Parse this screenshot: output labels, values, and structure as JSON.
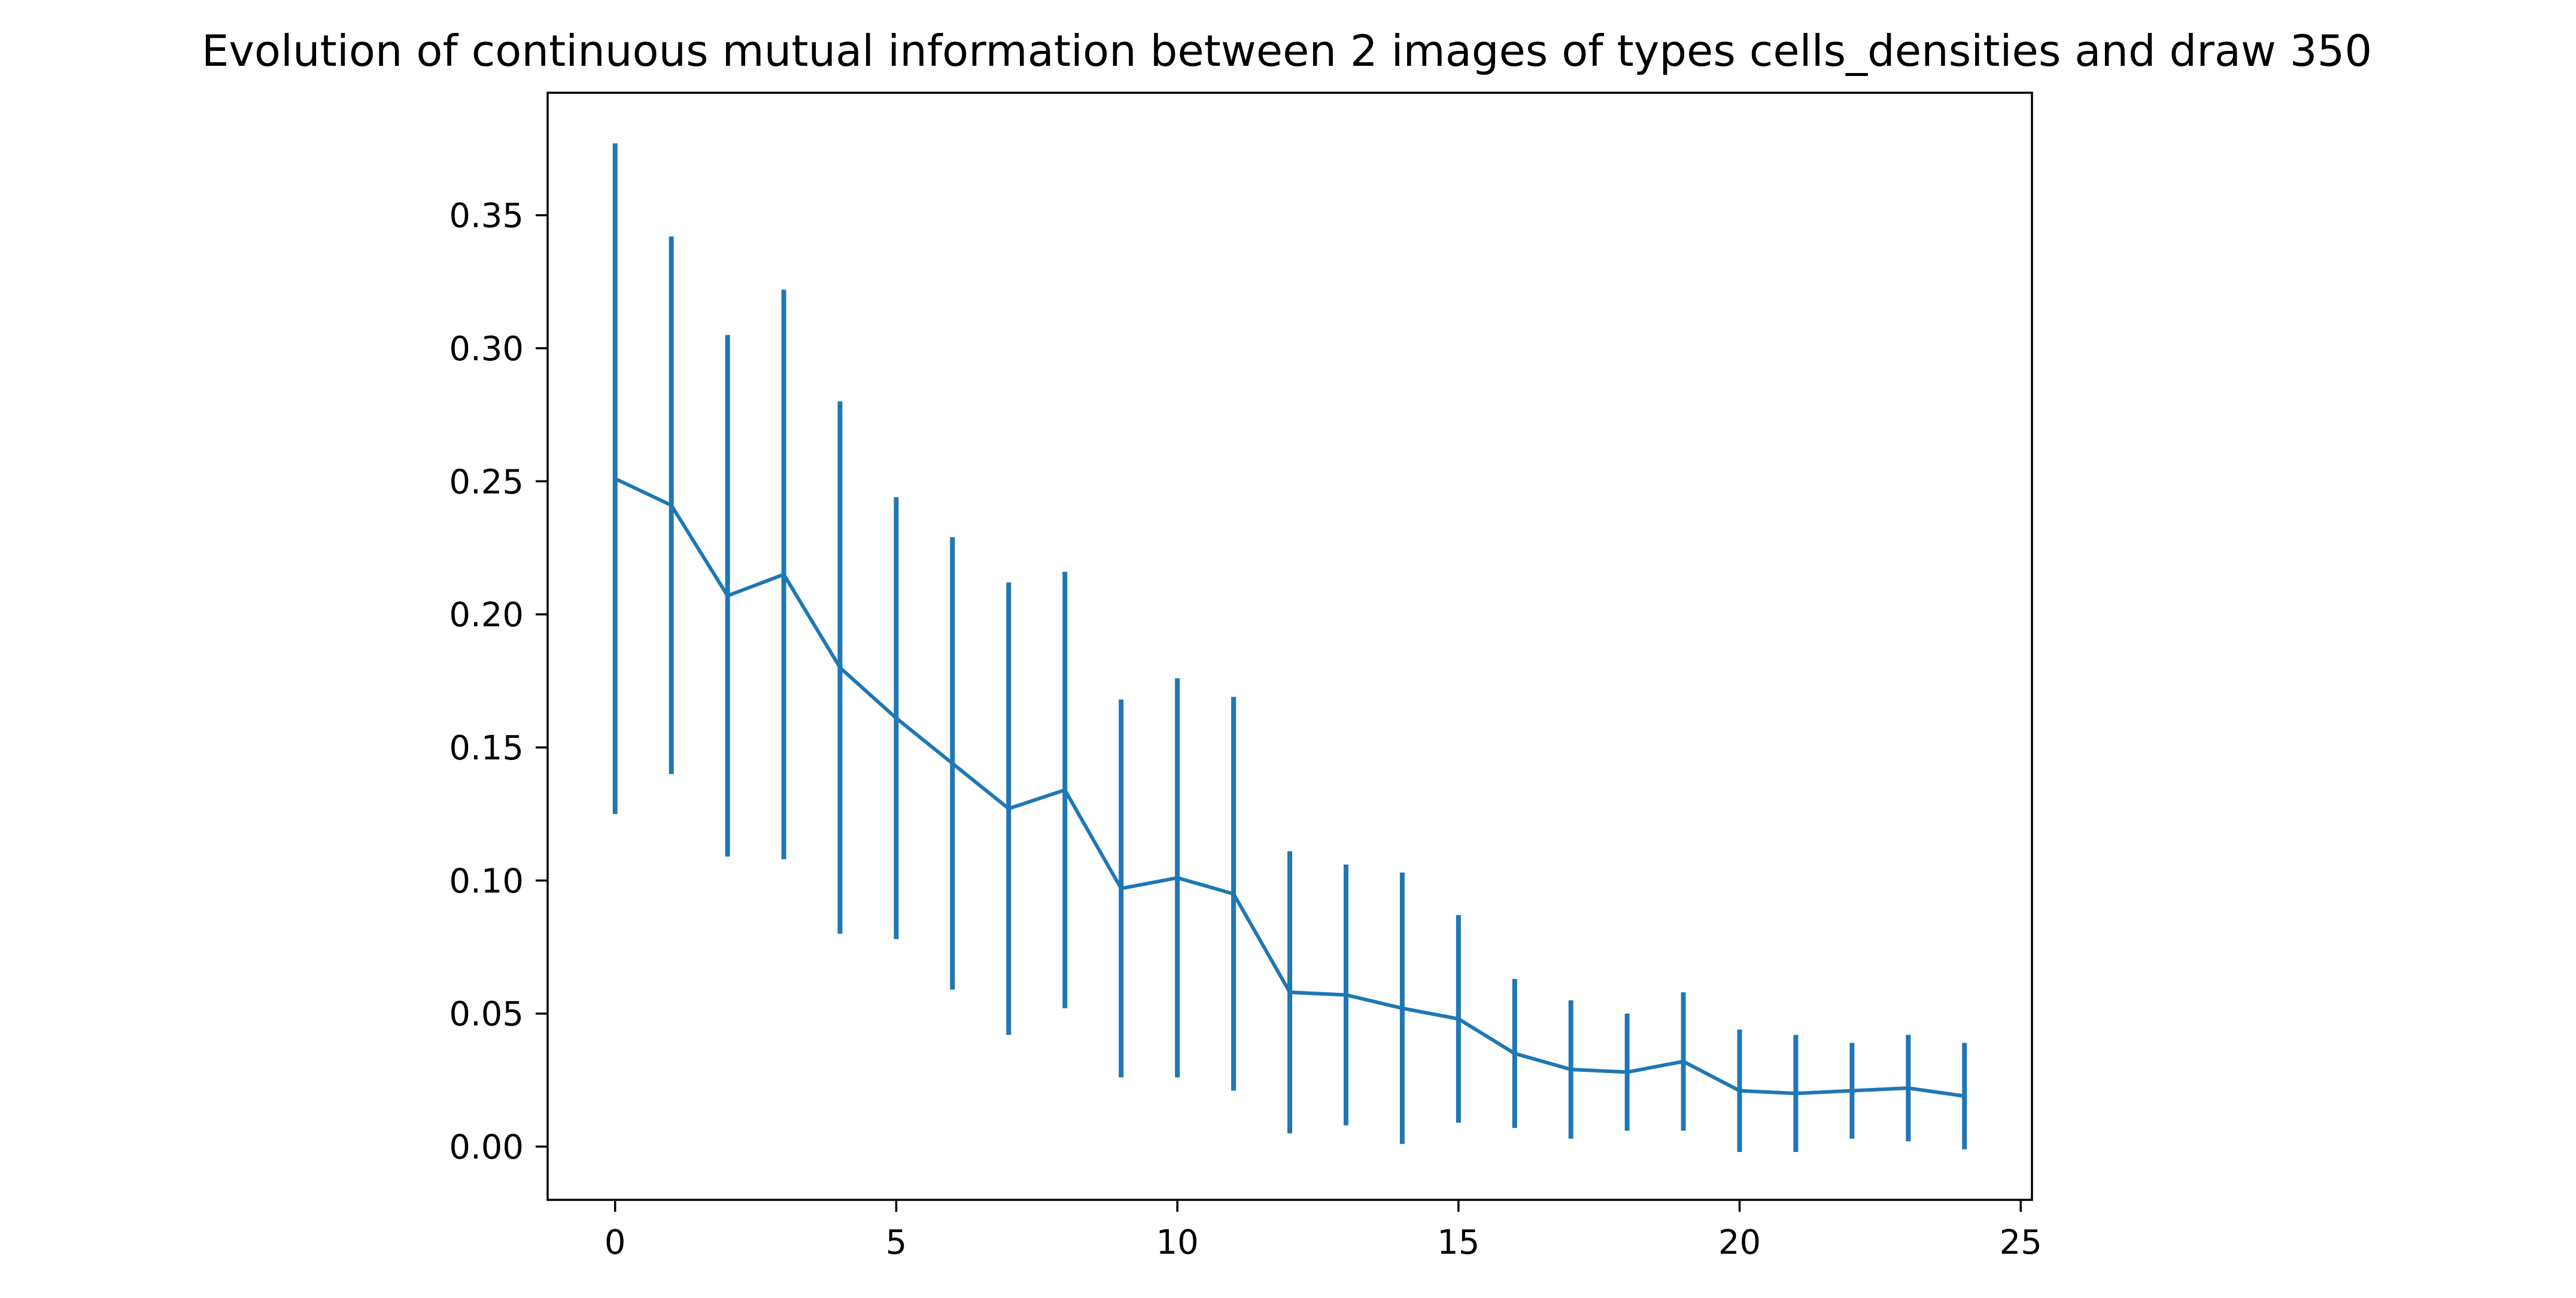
{
  "chart_data": {
    "type": "line",
    "title": "Evolution of continuous mutual information between 2 images of types cells_densities and draw 350",
    "xlabel": "",
    "ylabel": "",
    "xlim": [
      -1.2,
      25.2
    ],
    "ylim": [
      -0.02,
      0.396
    ],
    "x_ticks": [
      0,
      5,
      10,
      15,
      20,
      25
    ],
    "x_tick_labels": [
      "0",
      "5",
      "10",
      "15",
      "20",
      "25"
    ],
    "y_ticks": [
      0.0,
      0.05,
      0.1,
      0.15,
      0.2,
      0.25,
      0.3,
      0.35
    ],
    "y_tick_labels": [
      "0.00",
      "0.05",
      "0.10",
      "0.15",
      "0.20",
      "0.25",
      "0.30",
      "0.35"
    ],
    "grid": false,
    "legend": "none",
    "line_color": "#1f77b4",
    "series": [
      {
        "x": [
          0,
          1,
          2,
          3,
          4,
          5,
          6,
          7,
          8,
          9,
          10,
          11,
          12,
          13,
          14,
          15,
          16,
          17,
          18,
          19,
          20,
          21,
          22,
          23,
          24
        ],
        "y": [
          0.251,
          0.241,
          0.207,
          0.215,
          0.18,
          0.161,
          0.144,
          0.127,
          0.134,
          0.097,
          0.101,
          0.095,
          0.058,
          0.057,
          0.052,
          0.048,
          0.035,
          0.029,
          0.028,
          0.032,
          0.021,
          0.02,
          0.021,
          0.022,
          0.019
        ],
        "error": [
          0.126,
          0.101,
          0.098,
          0.107,
          0.1,
          0.083,
          0.085,
          0.085,
          0.082,
          0.071,
          0.075,
          0.074,
          0.053,
          0.049,
          0.051,
          0.039,
          0.028,
          0.026,
          0.022,
          0.026,
          0.023,
          0.022,
          0.018,
          0.02,
          0.02
        ]
      }
    ]
  }
}
